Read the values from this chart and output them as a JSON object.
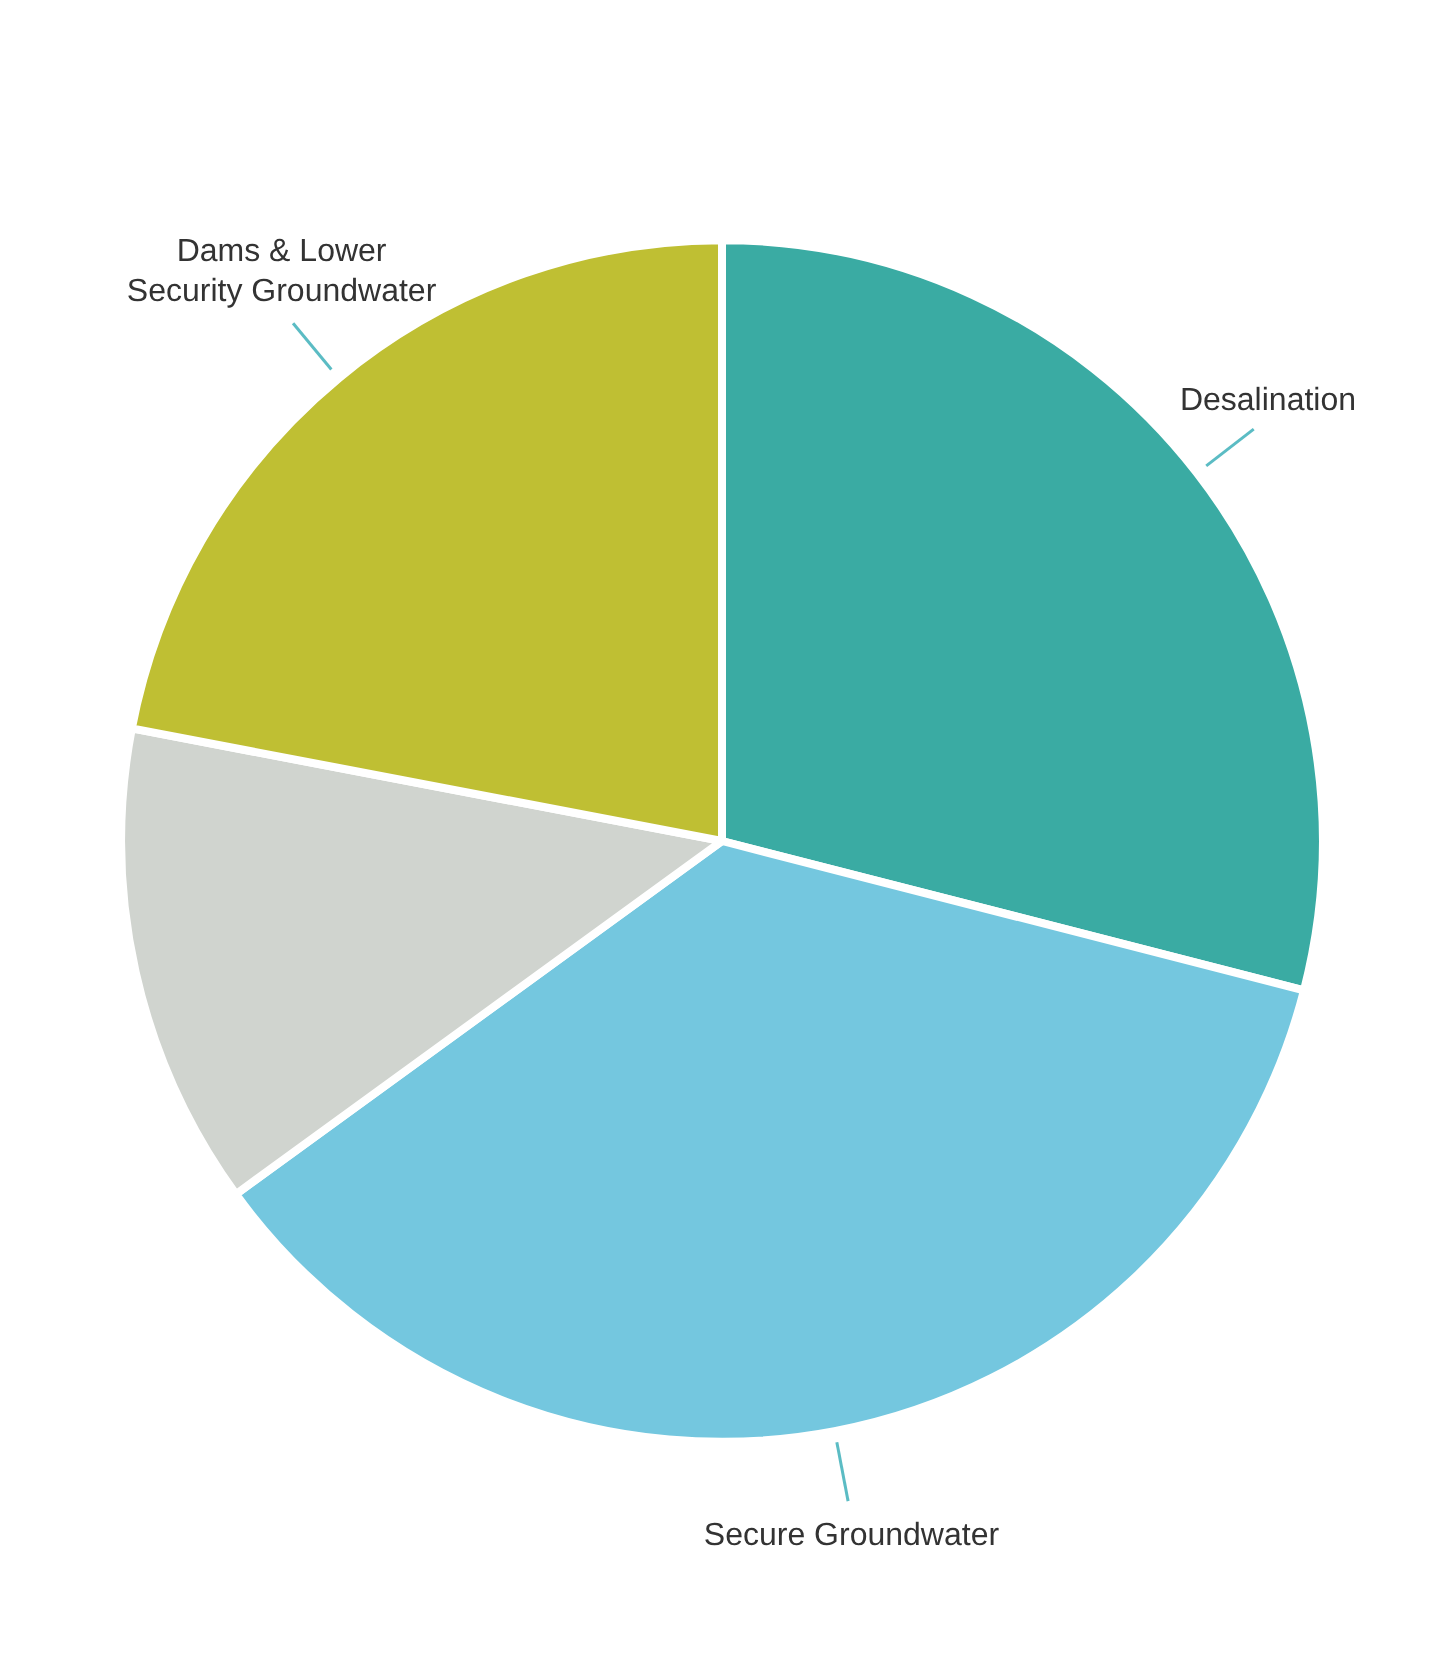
{
  "chart_data": {
    "type": "pie",
    "categories": [
      "Desalination",
      "Secure Groundwater",
      null,
      "Dams & Lower Security Groundwater"
    ],
    "values": [
      29,
      36,
      13,
      22
    ],
    "colors": [
      "#3aaba3",
      "#74c7df",
      "#d0d4cf",
      "#bfbf33"
    ]
  }
}
